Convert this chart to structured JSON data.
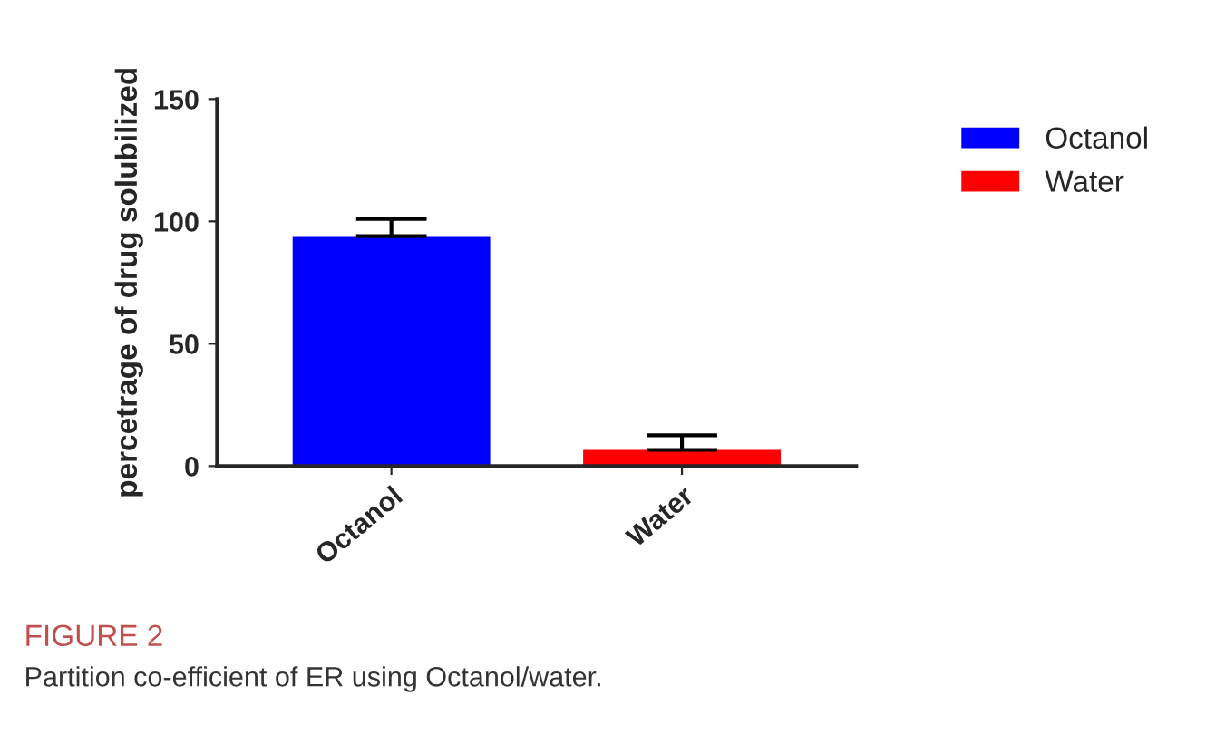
{
  "chart_data": {
    "type": "bar",
    "ylabel": "percetrage of drug solubilized",
    "categories": [
      "Octanol",
      "Water"
    ],
    "series": [
      {
        "name": "Octanol",
        "color": "#0000ff",
        "values": [
          94,
          null
        ],
        "errors": [
          7,
          null
        ]
      },
      {
        "name": "Water",
        "color": "#ff0000",
        "values": [
          null,
          6.6
        ],
        "errors": [
          null,
          6
        ]
      }
    ],
    "ylim": [
      0,
      150
    ],
    "yticks": [
      0,
      50,
      100,
      150
    ],
    "grid": false,
    "legend": "top right",
    "annotations": [
      "FIGURE 2",
      "Partition co-efficient of ER using Octanol/water."
    ]
  }
}
